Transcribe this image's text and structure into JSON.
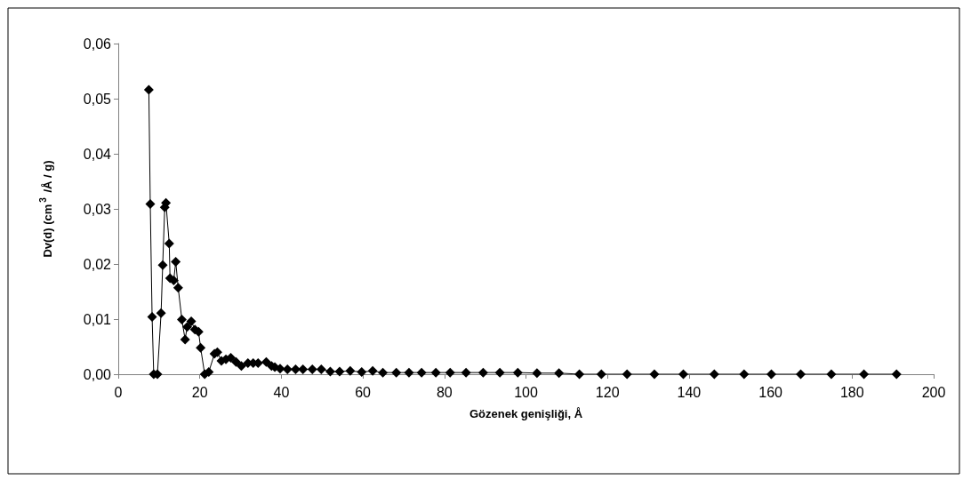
{
  "chart_data": {
    "type": "line",
    "xlabel": "Gözenek genişliği, Å",
    "ylabel": "Dv(d) (cm$^{3}$ /Å / g)",
    "marker": "diamond",
    "grid": false,
    "xlim": [
      0,
      200
    ],
    "xticks": [
      0,
      20,
      40,
      60,
      80,
      100,
      120,
      140,
      160,
      180,
      200
    ],
    "ylim": [
      0,
      0.06
    ],
    "yticks": [
      {
        "value": 0,
        "label": "0,00"
      },
      {
        "value": 0.01,
        "label": "0,01"
      },
      {
        "value": 0.02,
        "label": "0,02"
      },
      {
        "value": 0.03,
        "label": "0,03"
      },
      {
        "value": 0.04,
        "label": "0,04"
      },
      {
        "value": 0.05,
        "label": "0,05"
      },
      {
        "value": 0.06,
        "label": "0,06"
      }
    ],
    "series": [
      {
        "color": "#000000",
        "x": [
          7.5,
          7.85,
          8.3,
          8.7,
          9.6,
          10.5,
          10.9,
          11.4,
          11.7,
          12.5,
          12.7,
          13.6,
          14.1,
          14.7,
          15.6,
          16.4,
          16.9,
          17.9,
          18.8,
          19.7,
          20.2,
          21.2,
          22.2,
          23.6,
          24.3,
          25.3,
          26.4,
          27.6,
          28.9,
          30.2,
          31.8,
          33.1,
          34.3,
          36.3,
          37.6,
          38.4,
          39.7,
          41.5,
          43.5,
          45.3,
          47.6,
          49.8,
          52.0,
          54.3,
          56.9,
          59.7,
          62.4,
          64.9,
          68.2,
          71.3,
          74.4,
          77.9,
          81.4,
          85.3,
          89.5,
          93.6,
          98.0,
          102.7,
          108.1,
          113.1,
          118.5,
          124.8,
          131.5,
          138.6,
          146.2,
          153.5,
          160.2,
          167.4,
          174.9,
          182.9,
          190.9
        ],
        "values": [
          0.0516,
          0.0309,
          0.0104,
          0,
          0,
          0.0111,
          0.0198,
          0.0303,
          0.0311,
          0.0237,
          0.0174,
          0.017,
          0.0204,
          0.0157,
          0.0099,
          0.0063,
          0.0086,
          0.0096,
          0.0081,
          0.0077,
          0.0048,
          0,
          0.0004,
          0.0037,
          0.004,
          0.0024,
          0.0027,
          0.003,
          0.0022,
          0.0015,
          0.002,
          0.002,
          0.002,
          0.0022,
          0.0015,
          0.0013,
          0.001,
          0.0009,
          0.0009,
          0.0009,
          0.0009,
          0.0009,
          0.0005,
          0.0005,
          0.0006,
          0.0004,
          0.0006,
          0.0003,
          0.0003,
          0.0003,
          0.0003,
          0.0003,
          0.0003,
          0.0003,
          0.0003,
          0.0003,
          0.0003,
          0.0002,
          0.0002,
          0,
          0,
          0,
          0,
          0,
          0,
          0,
          0,
          0,
          0,
          0,
          0
        ]
      }
    ]
  }
}
